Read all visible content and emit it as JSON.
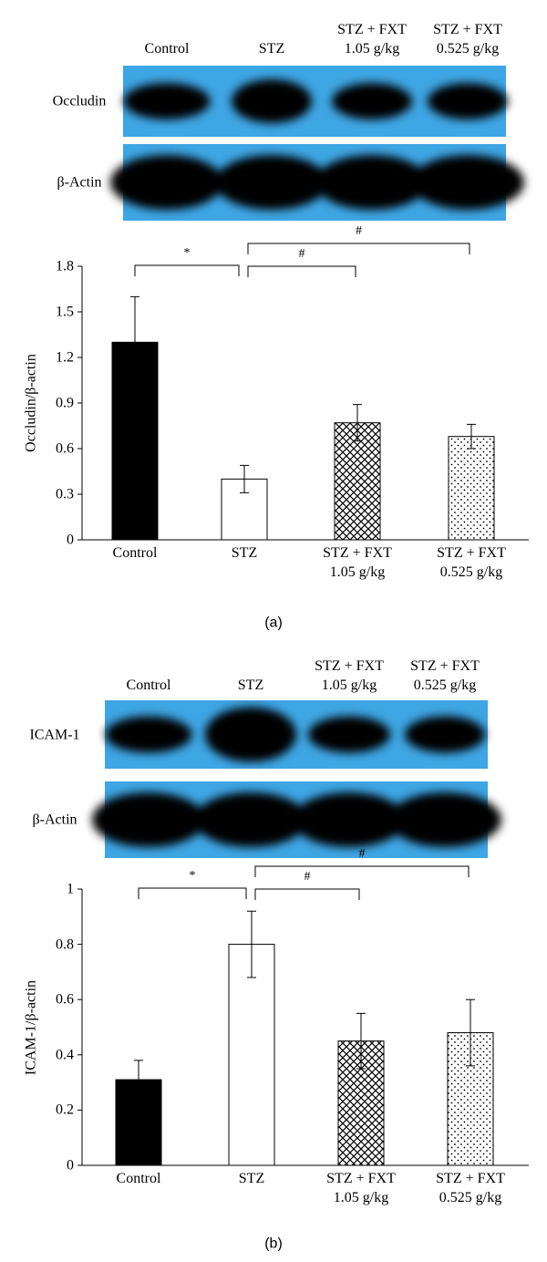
{
  "chart_data": [
    {
      "type": "bar",
      "panel_label": "(a)",
      "blot": {
        "columns": [
          "Control",
          "STZ",
          "STZ + FXT\n1.05 g/kg",
          "STZ + FXT\n0.525 g/kg"
        ],
        "rows": [
          "Occludin",
          "β-Actin"
        ]
      },
      "ylabel": "Occludin/β-actin",
      "categories": [
        "Control",
        "STZ",
        "STZ + FXT\n1.05 g/kg",
        "STZ + FXT\n0.525 g/kg"
      ],
      "values": [
        1.3,
        0.4,
        0.77,
        0.68
      ],
      "errors": [
        0.3,
        0.09,
        0.12,
        0.08
      ],
      "fills": [
        "solid",
        "empty",
        "hatch",
        "dots"
      ],
      "ylim": [
        0,
        1.8
      ],
      "yticks": [
        0,
        0.3,
        0.6,
        0.9,
        1.2,
        1.5,
        1.8
      ],
      "annotations": [
        {
          "text": "*",
          "from": 0,
          "to": 1
        },
        {
          "text": "#",
          "from": 1,
          "to": 2
        },
        {
          "text": "#",
          "from": 1,
          "to": 3
        }
      ]
    },
    {
      "type": "bar",
      "panel_label": "(b)",
      "blot": {
        "columns": [
          "Control",
          "STZ",
          "STZ + FXT\n1.05 g/kg",
          "STZ + FXT\n0.525 g/kg"
        ],
        "rows": [
          "ICAM-1",
          "β-Actin"
        ]
      },
      "ylabel": "ICAM-1/β-actin",
      "categories": [
        "Control",
        "STZ",
        "STZ + FXT\n1.05 g/kg",
        "STZ + FXT\n0.525 g/kg"
      ],
      "values": [
        0.31,
        0.8,
        0.45,
        0.48
      ],
      "errors": [
        0.07,
        0.12,
        0.1,
        0.12
      ],
      "fills": [
        "solid",
        "empty",
        "hatch",
        "dots"
      ],
      "ylim": [
        0,
        1
      ],
      "yticks": [
        0,
        0.2,
        0.4,
        0.6,
        0.8,
        1
      ],
      "annotations": [
        {
          "text": "*",
          "from": 0,
          "to": 1
        },
        {
          "text": "#",
          "from": 1,
          "to": 2
        },
        {
          "text": "#",
          "from": 1,
          "to": 3
        }
      ]
    }
  ]
}
